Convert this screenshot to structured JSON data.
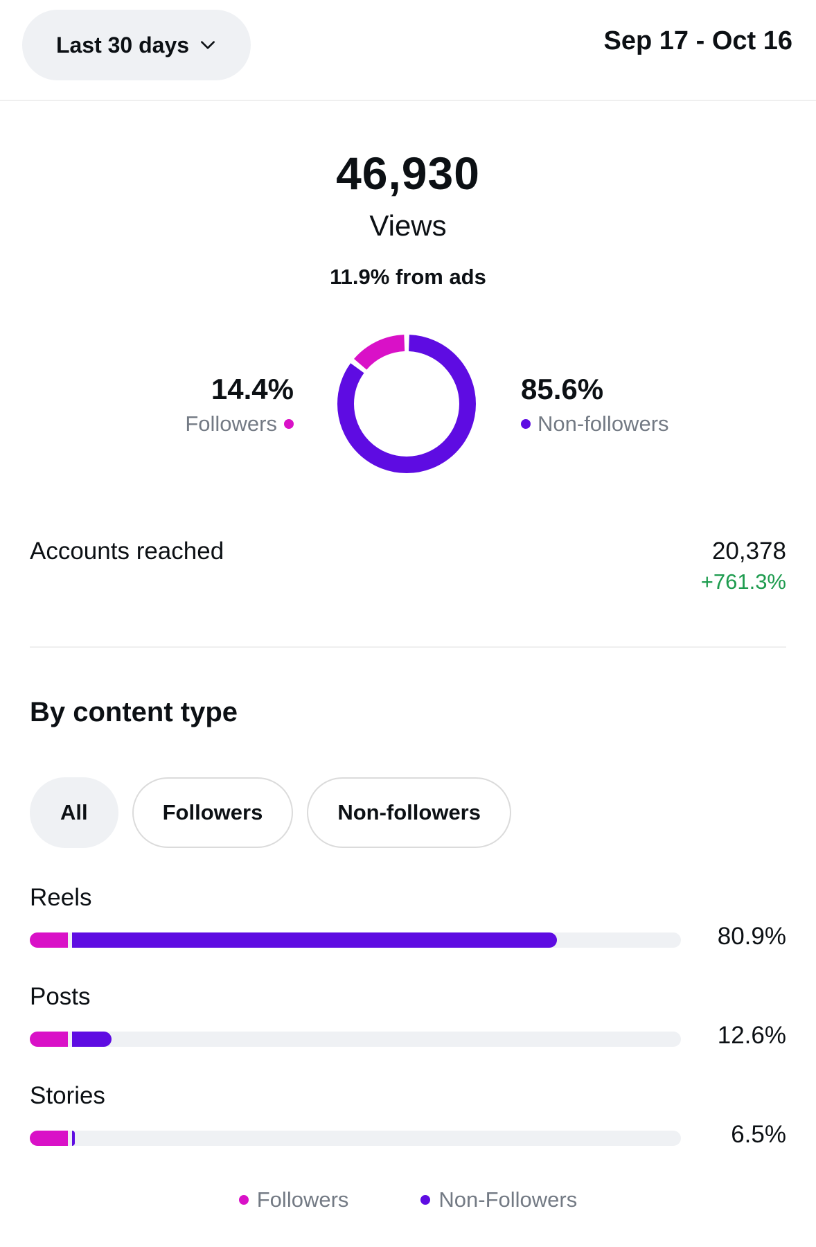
{
  "header": {
    "range_label": "Last 30 days",
    "date_range": "Sep 17 - Oct 16"
  },
  "summary": {
    "total": "46,930",
    "total_label": "Views",
    "ads_note": "11.9% from ads"
  },
  "split": {
    "followers": {
      "pct": "14.4%",
      "label": "Followers",
      "value": 14.4
    },
    "non_followers": {
      "pct": "85.6%",
      "label": "Non-followers",
      "value": 85.6
    }
  },
  "metric": {
    "name": "Accounts reached",
    "value": "20,378",
    "delta": "+761.3%"
  },
  "content_type": {
    "title": "By content type",
    "chips": [
      "All",
      "Followers",
      "Non-followers"
    ],
    "rows": [
      {
        "name": "Reels",
        "pct": "80.9%",
        "followers_frac": 0.058,
        "non_followers_frac": 0.752
      },
      {
        "name": "Posts",
        "pct": "12.6%",
        "followers_frac": 0.058,
        "non_followers_frac": 0.068
      },
      {
        "name": "Stories",
        "pct": "6.5%",
        "followers_frac": 0.058,
        "non_followers_frac": 0.008
      }
    ]
  },
  "legend": {
    "followers": "Followers",
    "non_followers": "Non-Followers"
  },
  "colors": {
    "followers": "#d911c7",
    "non_followers": "#5e0ce2",
    "positive": "#1d9b4e"
  },
  "icons": {
    "range_dropdown": "chevron-down-icon"
  }
}
